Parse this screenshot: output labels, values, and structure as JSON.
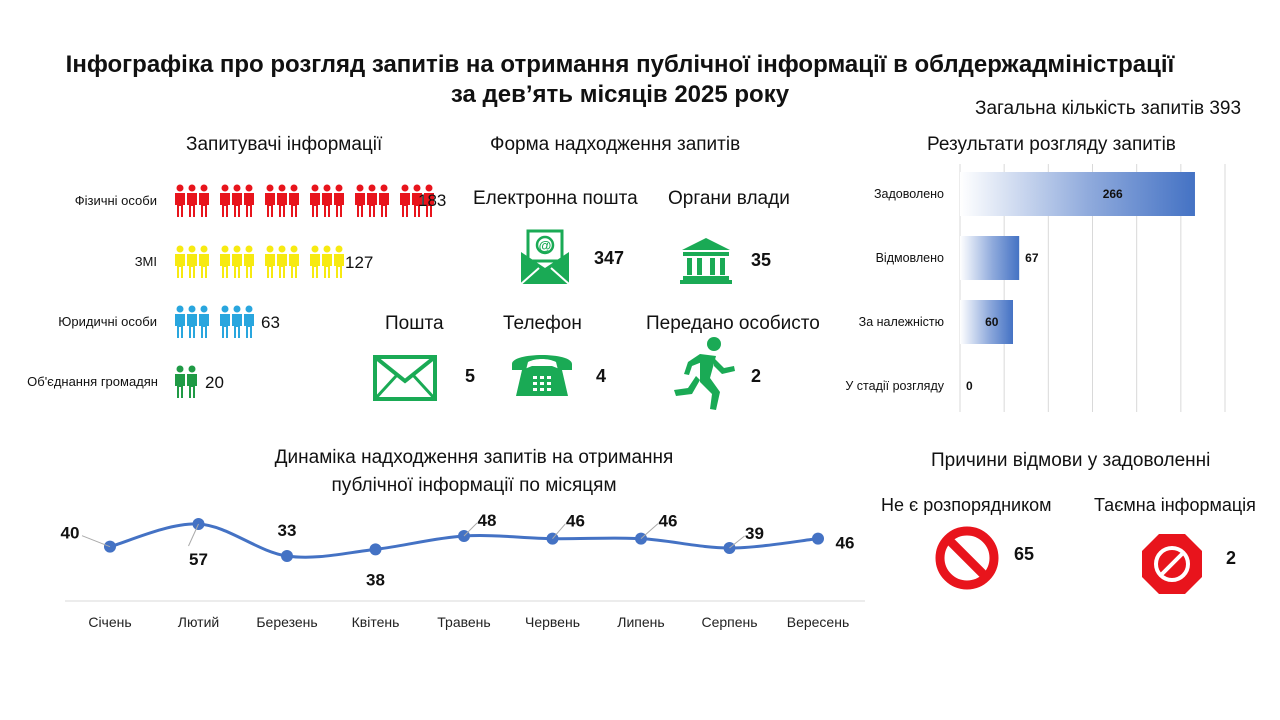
{
  "title_line1": "Інфографіка про розгляд запитів на отримання публічної інформації в облдержадміністрації",
  "title_line2": "за дев’ять місяців 2025 року",
  "total_requests": "Загальна кількість запитів 393",
  "requesters": {
    "heading": "Запитувачі інформації",
    "rows": [
      {
        "label": "Фізичні особи",
        "value": "183",
        "color": "#e8141c"
      },
      {
        "label": "ЗМІ",
        "value": "127",
        "color": "#f7ea11"
      },
      {
        "label": "Юридичні особи",
        "value": "63",
        "color": "#29a6de"
      },
      {
        "label": "Об'єднання громадян",
        "value": "20",
        "color": "#1f9a45"
      }
    ]
  },
  "forms": {
    "heading": "Форма надходження запитів",
    "items": [
      {
        "label": "Електронна пошта",
        "value": "347",
        "icon": "email-at-icon"
      },
      {
        "label": "Органи влади",
        "value": "35",
        "icon": "government-building-icon"
      },
      {
        "label": "Пошта",
        "value": "5",
        "icon": "envelope-icon"
      },
      {
        "label": "Телефон",
        "value": "4",
        "icon": "telephone-icon"
      },
      {
        "label": "Передано особисто",
        "value": "2",
        "icon": "running-person-icon"
      }
    ],
    "icon_color": "#1aaa55"
  },
  "results": {
    "heading": "Результати розгляду запитів"
  },
  "refusal": {
    "heading": "Причини відмови у задоволенні",
    "items": [
      {
        "label": "Не є розпорядником",
        "value": "65",
        "icon": "prohibited-circle-icon"
      },
      {
        "label": "Таємна інформація",
        "value": "2",
        "icon": "prohibited-octagon-icon"
      }
    ],
    "icon_color": "#e8141c"
  },
  "dynamics": {
    "heading_line1": "Динаміка надходження запитів на отримання",
    "heading_line2": "публічної інформації по місяцям"
  },
  "chart_data": [
    {
      "type": "bar",
      "orientation": "horizontal",
      "title": "Результати розгляду запитів",
      "categories": [
        "Задоволено",
        "Відмовлено",
        "За належністю",
        "У стадії розгляду"
      ],
      "values": [
        266,
        67,
        60,
        0
      ],
      "xlim": [
        0,
        300
      ],
      "grid": true,
      "bar_color": "#4472c4"
    },
    {
      "type": "line",
      "title": "Динаміка надходження запитів на отримання публічної інформації по місяцям",
      "categories": [
        "Січень",
        "Лютий",
        "Березень",
        "Квітень",
        "Травень",
        "Червень",
        "Липень",
        "Серпень",
        "Вересень"
      ],
      "values": [
        40,
        57,
        33,
        38,
        48,
        46,
        46,
        39,
        46
      ],
      "line_color": "#4472c4",
      "smooth": true
    }
  ]
}
